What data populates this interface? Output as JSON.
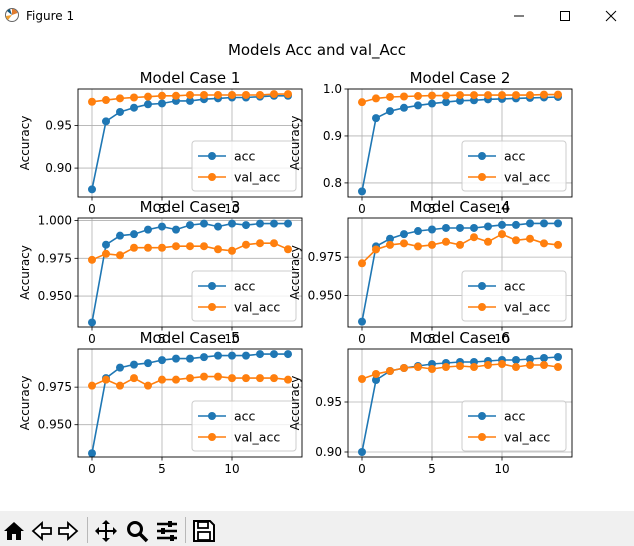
{
  "window": {
    "title": "Figure 1"
  },
  "toolbar": {
    "buttons": [
      "home-icon",
      "back-icon",
      "forward-icon",
      "pan-icon",
      "zoom-icon",
      "configure-subplots-icon",
      "save-icon"
    ]
  },
  "figure": {
    "suptitle": "Models Acc and val_Acc"
  },
  "chart_data": [
    {
      "type": "line",
      "title": "Model Case 1",
      "ylabel": "Accuracy",
      "x": [
        0,
        1,
        2,
        3,
        4,
        5,
        6,
        7,
        8,
        9,
        10,
        11,
        12,
        13,
        14
      ],
      "xticks": [
        0,
        5,
        10
      ],
      "yticks": [
        0.9,
        0.95
      ],
      "xlim": [
        -1,
        15
      ],
      "ylim": [
        0.866,
        0.993
      ],
      "grid": true,
      "legend": "lower-right",
      "series": [
        {
          "name": "acc",
          "color": "#1f77b4",
          "values": [
            0.875,
            0.955,
            0.966,
            0.971,
            0.975,
            0.976,
            0.979,
            0.979,
            0.981,
            0.982,
            0.983,
            0.983,
            0.984,
            0.985,
            0.985
          ]
        },
        {
          "name": "val_acc",
          "color": "#ff7f0e",
          "values": [
            0.978,
            0.98,
            0.982,
            0.983,
            0.984,
            0.985,
            0.985,
            0.986,
            0.986,
            0.986,
            0.986,
            0.986,
            0.986,
            0.987,
            0.987
          ]
        }
      ]
    },
    {
      "type": "line",
      "title": "Model Case 2",
      "ylabel": "Accuracy",
      "x": [
        0,
        1,
        2,
        3,
        4,
        5,
        6,
        7,
        8,
        9,
        10,
        11,
        12,
        13,
        14
      ],
      "xticks": [
        0,
        5,
        10
      ],
      "yticks": [
        0.8,
        0.9,
        1.0
      ],
      "xlim": [
        -1,
        15
      ],
      "ylim": [
        0.77,
        1.0
      ],
      "grid": true,
      "legend": "lower-right",
      "series": [
        {
          "name": "acc",
          "color": "#1f77b4",
          "values": [
            0.782,
            0.938,
            0.953,
            0.96,
            0.965,
            0.969,
            0.972,
            0.975,
            0.976,
            0.978,
            0.979,
            0.98,
            0.981,
            0.982,
            0.983
          ]
        },
        {
          "name": "val_acc",
          "color": "#ff7f0e",
          "values": [
            0.972,
            0.98,
            0.983,
            0.984,
            0.985,
            0.986,
            0.986,
            0.987,
            0.987,
            0.987,
            0.987,
            0.987,
            0.987,
            0.988,
            0.988
          ]
        }
      ]
    },
    {
      "type": "line",
      "title": "Model Case 3",
      "ylabel": "Accuracy",
      "x": [
        0,
        1,
        2,
        3,
        4,
        5,
        6,
        7,
        8,
        9,
        10,
        11,
        12,
        13,
        14
      ],
      "xticks": [
        0,
        5,
        10
      ],
      "yticks": [
        0.95,
        0.975,
        1.0
      ],
      "xlim": [
        -1,
        15
      ],
      "ylim": [
        0.9295,
        1.0017
      ],
      "grid": true,
      "legend": "lower-right",
      "series": [
        {
          "name": "acc",
          "color": "#1f77b4",
          "values": [
            0.9325,
            0.984,
            0.99,
            0.991,
            0.994,
            0.996,
            0.994,
            0.997,
            0.998,
            0.996,
            0.998,
            0.997,
            0.998,
            0.998,
            0.998
          ]
        },
        {
          "name": "val_acc",
          "color": "#ff7f0e",
          "values": [
            0.974,
            0.978,
            0.977,
            0.982,
            0.982,
            0.982,
            0.983,
            0.983,
            0.983,
            0.981,
            0.98,
            0.984,
            0.985,
            0.985,
            0.981
          ]
        }
      ]
    },
    {
      "type": "line",
      "title": "Model Case 4",
      "ylabel": "Accuracy",
      "x": [
        0,
        1,
        2,
        3,
        4,
        5,
        6,
        7,
        8,
        9,
        10,
        11,
        12,
        13,
        14
      ],
      "xticks": [
        0,
        5,
        10
      ],
      "yticks": [
        0.95,
        0.975
      ],
      "xlim": [
        -1,
        15
      ],
      "ylim": [
        0.9295,
        1.0005
      ],
      "grid": true,
      "legend": "lower-right",
      "series": [
        {
          "name": "acc",
          "color": "#1f77b4",
          "values": [
            0.933,
            0.982,
            0.987,
            0.99,
            0.992,
            0.993,
            0.994,
            0.994,
            0.994,
            0.995,
            0.996,
            0.996,
            0.997,
            0.997,
            0.997
          ]
        },
        {
          "name": "val_acc",
          "color": "#ff7f0e",
          "values": [
            0.971,
            0.98,
            0.983,
            0.984,
            0.982,
            0.983,
            0.985,
            0.983,
            0.988,
            0.985,
            0.99,
            0.986,
            0.987,
            0.984,
            0.983
          ]
        }
      ]
    },
    {
      "type": "line",
      "title": "Model Case 5",
      "ylabel": "Accuracy",
      "x": [
        0,
        1,
        2,
        3,
        4,
        5,
        6,
        7,
        8,
        9,
        10,
        11,
        12,
        13,
        14
      ],
      "xticks": [
        0,
        5,
        10
      ],
      "yticks": [
        0.95,
        0.975
      ],
      "xlim": [
        -1,
        15
      ],
      "ylim": [
        0.9285,
        1.0004
      ],
      "grid": true,
      "legend": "lower-right",
      "series": [
        {
          "name": "acc",
          "color": "#1f77b4",
          "values": [
            0.931,
            0.981,
            0.988,
            0.99,
            0.991,
            0.993,
            0.994,
            0.994,
            0.995,
            0.996,
            0.996,
            0.996,
            0.997,
            0.997,
            0.997
          ]
        },
        {
          "name": "val_acc",
          "color": "#ff7f0e",
          "values": [
            0.976,
            0.98,
            0.976,
            0.981,
            0.976,
            0.98,
            0.98,
            0.981,
            0.982,
            0.982,
            0.981,
            0.981,
            0.981,
            0.981,
            0.98
          ]
        }
      ]
    },
    {
      "type": "line",
      "title": "Model Case 6",
      "ylabel": "Accuracy",
      "x": [
        0,
        1,
        2,
        3,
        4,
        5,
        6,
        7,
        8,
        9,
        10,
        11,
        12,
        13,
        14
      ],
      "xticks": [
        0,
        5,
        10
      ],
      "yticks": [
        0.9,
        0.95
      ],
      "xlim": [
        -1,
        15
      ],
      "ylim": [
        0.895,
        1.003
      ],
      "grid": true,
      "legend": "lower-right",
      "series": [
        {
          "name": "acc",
          "color": "#1f77b4",
          "values": [
            0.9,
            0.972,
            0.981,
            0.984,
            0.986,
            0.988,
            0.989,
            0.99,
            0.99,
            0.991,
            0.992,
            0.992,
            0.993,
            0.994,
            0.995
          ]
        },
        {
          "name": "val_acc",
          "color": "#ff7f0e",
          "values": [
            0.973,
            0.978,
            0.981,
            0.984,
            0.985,
            0.983,
            0.985,
            0.986,
            0.985,
            0.987,
            0.988,
            0.985,
            0.987,
            0.987,
            0.985
          ]
        }
      ]
    }
  ]
}
